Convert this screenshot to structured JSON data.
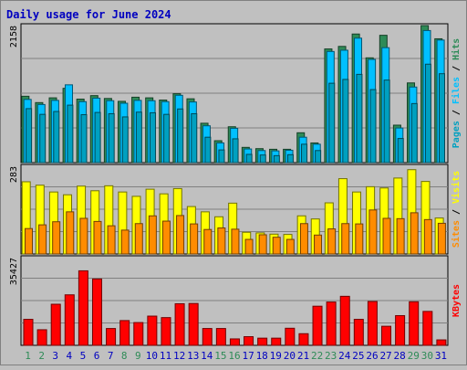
{
  "title": "Daily usage for June 2024",
  "colors": {
    "title": "#0000c0",
    "hits": "#2e8b57",
    "files": "#00c0ff",
    "pages": "#00a0c0",
    "visits": "#ffff00",
    "sites": "#ff8c00",
    "kbytes": "#ff0000",
    "weekend_day": "#2e8b57",
    "weekday": "#0000c0"
  },
  "chart_data": [
    {
      "type": "bar",
      "panel": "hits-files-pages",
      "ymax_label": "2158",
      "axis_label_parts": [
        "Pages",
        "Files",
        "Hits"
      ],
      "categories": [
        "1",
        "2",
        "3",
        "4",
        "5",
        "6",
        "7",
        "8",
        "9",
        "10",
        "11",
        "12",
        "13",
        "14",
        "15",
        "16",
        "17",
        "18",
        "19",
        "20",
        "21",
        "22",
        "23",
        "24",
        "25",
        "26",
        "27",
        "28",
        "29",
        "30",
        "31"
      ],
      "ylim": [
        0,
        2158
      ],
      "series": [
        {
          "name": "Hits",
          "values": [
            1045,
            945,
            1020,
            1170,
            1000,
            1055,
            1010,
            965,
            1030,
            1020,
            985,
            1085,
            1005,
            620,
            345,
            565,
            240,
            220,
            210,
            210,
            470,
            310,
            1790,
            1830,
            2025,
            1650,
            2005,
            590,
            1255,
            2158,
            1950
          ]
        },
        {
          "name": "Files",
          "values": [
            995,
            915,
            980,
            1225,
            960,
            1015,
            975,
            935,
            980,
            975,
            960,
            1060,
            955,
            580,
            310,
            540,
            215,
            190,
            185,
            195,
            400,
            290,
            1750,
            1770,
            1960,
            1625,
            1810,
            545,
            1190,
            2080,
            1930
          ]
        },
        {
          "name": "Pages",
          "values": [
            850,
            760,
            805,
            905,
            755,
            790,
            770,
            720,
            795,
            785,
            760,
            845,
            770,
            400,
            200,
            375,
            130,
            120,
            110,
            125,
            290,
            190,
            1250,
            1310,
            1390,
            1150,
            1300,
            380,
            930,
            1550,
            1400
          ]
        }
      ]
    },
    {
      "type": "bar",
      "panel": "visits-sites",
      "ymax_label": "283",
      "axis_label_parts": [
        "Sites",
        "Visits"
      ],
      "categories": [
        "1",
        "2",
        "3",
        "4",
        "5",
        "6",
        "7",
        "8",
        "9",
        "10",
        "11",
        "12",
        "13",
        "14",
        "15",
        "16",
        "17",
        "18",
        "19",
        "20",
        "21",
        "22",
        "23",
        "24",
        "25",
        "26",
        "27",
        "28",
        "29",
        "30",
        "31"
      ],
      "ylim": [
        0,
        283
      ],
      "series": [
        {
          "name": "Visits",
          "values": [
            233,
            222,
            200,
            191,
            219,
            204,
            220,
            200,
            186,
            209,
            194,
            211,
            153,
            136,
            120,
            164,
            70,
            68,
            64,
            63,
            123,
            113,
            165,
            243,
            200,
            217,
            213,
            245,
            272,
            234,
            116
          ]
        },
        {
          "name": "Sites",
          "values": [
            82,
            94,
            104,
            136,
            115,
            105,
            91,
            77,
            98,
            123,
            106,
            124,
            97,
            79,
            84,
            80,
            47,
            62,
            54,
            47,
            98,
            61,
            81,
            98,
            97,
            142,
            115,
            114,
            133,
            111,
            99
          ]
        }
      ]
    },
    {
      "type": "bar",
      "panel": "kbytes",
      "ymax_label": "35427",
      "axis_label_parts": [
        "KBytes"
      ],
      "categories": [
        "1",
        "2",
        "3",
        "4",
        "5",
        "6",
        "7",
        "8",
        "9",
        "10",
        "11",
        "12",
        "13",
        "14",
        "15",
        "16",
        "17",
        "18",
        "19",
        "20",
        "21",
        "22",
        "23",
        "24",
        "25",
        "26",
        "27",
        "28",
        "29",
        "30",
        "31"
      ],
      "ylim": [
        0,
        35427
      ],
      "series": [
        {
          "name": "KBytes",
          "values": [
            10500,
            6300,
            16600,
            20400,
            30100,
            26800,
            6800,
            10000,
            9200,
            11800,
            11200,
            16800,
            16900,
            6800,
            6800,
            2600,
            3500,
            2900,
            2900,
            6900,
            4700,
            15800,
            17500,
            19800,
            10500,
            17700,
            7700,
            12000,
            17600,
            13700,
            2200
          ]
        }
      ]
    }
  ]
}
